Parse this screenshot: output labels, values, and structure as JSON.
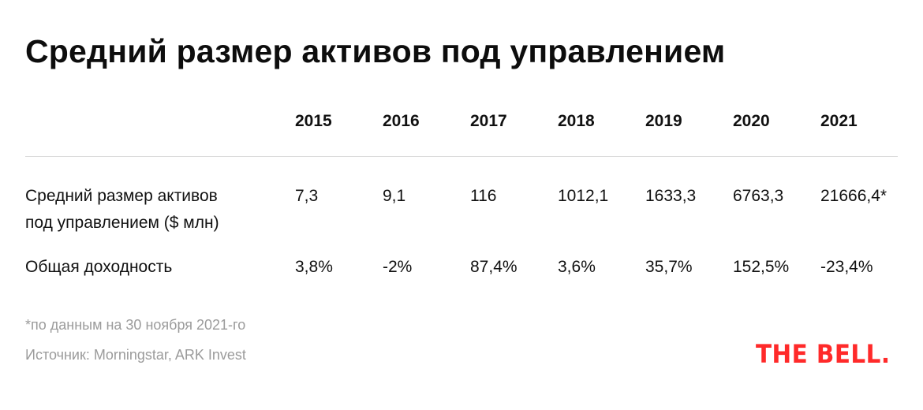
{
  "chart_data": {
    "type": "table",
    "title": "Средний размер активов под управлением",
    "columns": [
      "2015",
      "2016",
      "2017",
      "2018",
      "2019",
      "2020",
      "2021"
    ],
    "rows": [
      {
        "label_lines": [
          "Средний размер активов",
          "под управлением ($ млн)"
        ],
        "values": [
          "7,3",
          "9,1",
          "116",
          "1012,1",
          "1633,3",
          "6763,3",
          "21666,4*"
        ]
      },
      {
        "label_lines": [
          "Общая доходность"
        ],
        "values": [
          "3,8%",
          "-2%",
          "87,4%",
          "3,6%",
          "35,7%",
          "152,5%",
          "-23,4%"
        ]
      }
    ]
  },
  "footnote": "*по данным на 30 ноября 2021-го",
  "source": "Источник: Morningstar, ARK Invest",
  "logo_text": "THE BELL.",
  "colors": {
    "text": "#111111",
    "muted": "#9b9b9b",
    "divider": "#dcdcdc",
    "brand": "#ff2a2a"
  }
}
